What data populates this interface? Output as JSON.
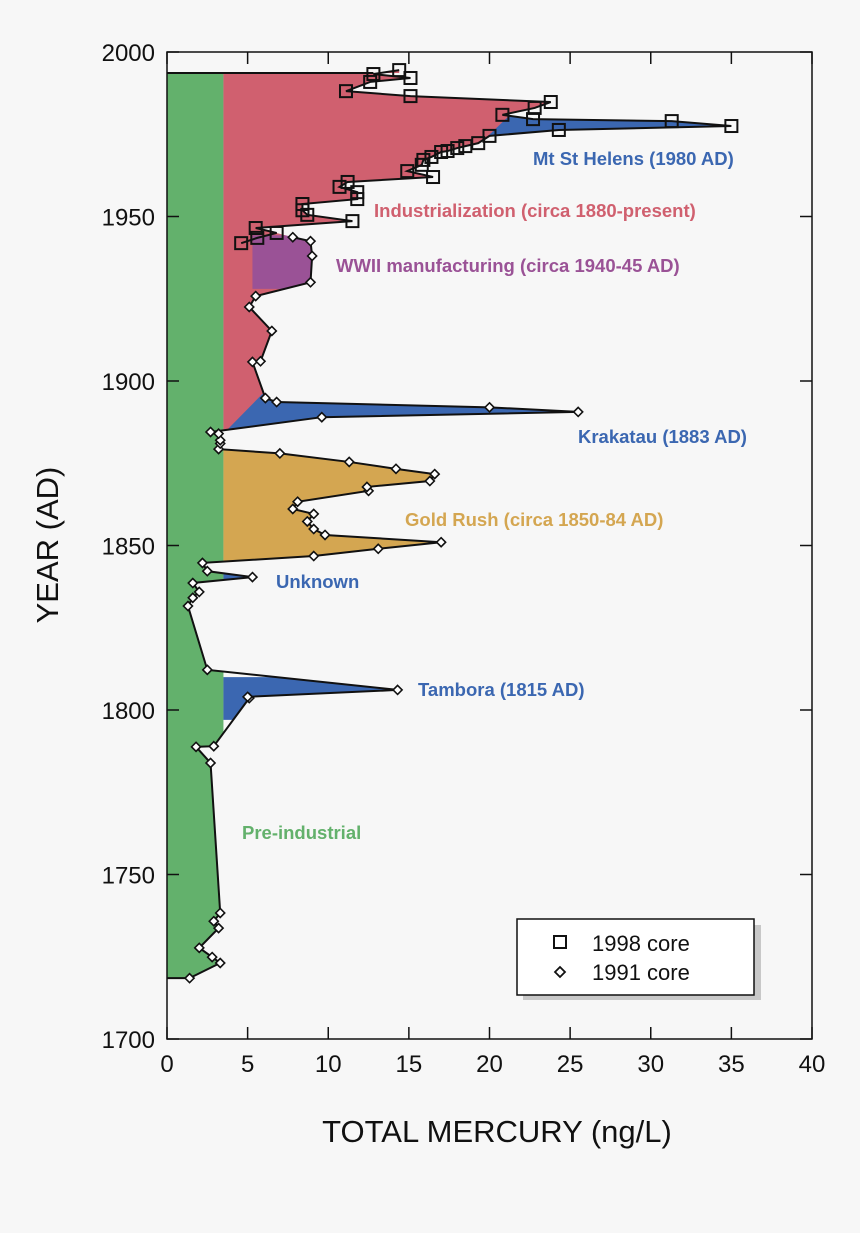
{
  "chart_data": {
    "type": "area",
    "title": "",
    "xlabel": "TOTAL MERCURY (ng/L)",
    "ylabel": "YEAR (AD)",
    "xlim": [
      0,
      40
    ],
    "ylim": [
      1700,
      2000
    ],
    "xticks": [
      "0",
      "5",
      "10",
      "15",
      "20",
      "25",
      "30",
      "35",
      "40"
    ],
    "yticks": [
      "1700",
      "1750",
      "1800",
      "1850",
      "1900",
      "1950",
      "2000"
    ],
    "legend_position": "bottom-right",
    "series": [
      {
        "name": "1998 core",
        "marker": "square",
        "points": [
          [
            4.6,
            1941.9
          ],
          [
            5.6,
            1943.5
          ],
          [
            6.8,
            1945
          ],
          [
            5.5,
            1946.5
          ],
          [
            11.5,
            1948.6
          ],
          [
            8.7,
            1950.5
          ],
          [
            8.4,
            1951.9
          ],
          [
            8.4,
            1953.8
          ],
          [
            11.8,
            1955.3
          ],
          [
            11.8,
            1957.4
          ],
          [
            10.7,
            1959
          ],
          [
            11.2,
            1960.5
          ],
          [
            16.5,
            1962
          ],
          [
            14.9,
            1963.8
          ],
          [
            15.8,
            1965.7
          ],
          [
            15.9,
            1967.2
          ],
          [
            16.4,
            1968.1
          ],
          [
            17,
            1969.6
          ],
          [
            17.4,
            1969.9
          ],
          [
            18,
            1970.8
          ],
          [
            18.5,
            1971.4
          ],
          [
            19.3,
            1972.3
          ],
          [
            20,
            1974.5
          ],
          [
            24.3,
            1976.3
          ],
          [
            35,
            1977.5
          ],
          [
            31.3,
            1979
          ],
          [
            22.7,
            1979.6
          ],
          [
            20.8,
            1980.9
          ],
          [
            22.8,
            1983
          ],
          [
            23.8,
            1984.8
          ],
          [
            15.1,
            1986.6
          ],
          [
            11.1,
            1988.1
          ],
          [
            12.6,
            1990.9
          ],
          [
            15.1,
            1992.1
          ],
          [
            12.8,
            1993.3
          ],
          [
            14.4,
            1994.5
          ]
        ]
      },
      {
        "name": "1991 core",
        "marker": "diamond",
        "points": [
          [
            1.4,
            1718.5
          ],
          [
            3.3,
            1723.1
          ],
          [
            2.8,
            1724.9
          ],
          [
            2,
            1727.7
          ],
          [
            3.2,
            1733.7
          ],
          [
            2.9,
            1735.8
          ],
          [
            3.3,
            1738.3
          ],
          [
            2.7,
            1783.9
          ],
          [
            1.8,
            1788.8
          ],
          [
            2.9,
            1789
          ],
          [
            5.1,
            1803.6
          ],
          [
            5.0,
            1804
          ],
          [
            14.3,
            1806.1
          ],
          [
            2.5,
            1812.2
          ],
          [
            1.3,
            1831.6
          ],
          [
            1.6,
            1834.1
          ],
          [
            2,
            1835.9
          ],
          [
            1.6,
            1838.6
          ],
          [
            5.3,
            1840.4
          ],
          [
            2.5,
            1842.2
          ],
          [
            2.2,
            1844.7
          ],
          [
            9.1,
            1846.8
          ],
          [
            13.1,
            1849
          ],
          [
            17,
            1851
          ],
          [
            9.8,
            1853.2
          ],
          [
            9.1,
            1855
          ],
          [
            8.7,
            1857.3
          ],
          [
            9.1,
            1859.6
          ],
          [
            7.8,
            1861.1
          ],
          [
            8.1,
            1863.3
          ],
          [
            12.5,
            1866.6
          ],
          [
            12.4,
            1867.8
          ],
          [
            16.3,
            1869.6
          ],
          [
            16.6,
            1871.7
          ],
          [
            14.2,
            1873.3
          ],
          [
            11.3,
            1875.4
          ],
          [
            7,
            1878
          ],
          [
            3.2,
            1879.3
          ],
          [
            3.3,
            1881
          ],
          [
            3.3,
            1882
          ],
          [
            3.2,
            1884
          ],
          [
            2.7,
            1884.5
          ],
          [
            9.6,
            1889
          ],
          [
            25.5,
            1890.6
          ],
          [
            20,
            1892
          ],
          [
            6.8,
            1893.6
          ],
          [
            6.1,
            1894.8
          ],
          [
            5.3,
            1905.8
          ],
          [
            5.8,
            1906
          ],
          [
            6.5,
            1915.2
          ],
          [
            5.1,
            1922.5
          ],
          [
            5.5,
            1925.8
          ],
          [
            8.9,
            1930
          ],
          [
            9.0,
            1938
          ],
          [
            8.9,
            1942.5
          ],
          [
            7.8,
            1943.7
          ]
        ]
      }
    ],
    "baseline_ng_per_L": 3.5,
    "top_year": 1993.6,
    "regions": [
      {
        "name": "Pre-industrial",
        "label": "Pre-industrial",
        "color": "#63b16c",
        "polygon": [
          [
            0,
            1700
          ],
          [
            3.5,
            1700
          ],
          [
            3.5,
            2000
          ],
          [
            0,
            2000
          ]
        ]
      },
      {
        "name": "Industrialization",
        "label": "Industrialization (circa 1880-present)",
        "color": "#d0606f",
        "polygon": [
          [
            3.5,
            1884
          ],
          [
            40,
            1884
          ],
          [
            40,
            2000
          ],
          [
            3.5,
            2000
          ]
        ]
      },
      {
        "name": "Krakatau",
        "label": "Krakatau (1883 AD)",
        "color": "#3b67b1",
        "polygon": [
          [
            3.5,
            1884
          ],
          [
            40,
            1884
          ],
          [
            40,
            1896
          ],
          [
            5.9,
            1896
          ]
        ]
      },
      {
        "name": "Mt St Helens",
        "label": "Mt St Helens (1980 AD)",
        "color": "#3b67b1",
        "polygon": [
          [
            19.7,
            1973.5
          ],
          [
            40,
            1973.5
          ],
          [
            40,
            1981
          ],
          [
            21.3,
            1981
          ]
        ]
      },
      {
        "name": "WWII",
        "label": "WWII manufacturing (circa 1940-45 AD)",
        "color": "#9a5296",
        "polygon": [
          [
            5.3,
            1928
          ],
          [
            40,
            1928
          ],
          [
            40,
            1944.3
          ],
          [
            5.3,
            1944.3
          ]
        ]
      },
      {
        "name": "Gold Rush",
        "label": "Gold Rush (circa 1850-84 AD)",
        "color": "#d4a651",
        "polygon": [
          [
            3.5,
            1845
          ],
          [
            40,
            1845
          ],
          [
            40,
            1879.2
          ],
          [
            3.5,
            1879.2
          ]
        ]
      },
      {
        "name": "Unknown",
        "label": "Unknown",
        "color": "#3b67b1",
        "polygon": [
          [
            3.5,
            1839
          ],
          [
            40,
            1839
          ],
          [
            40,
            1841.5
          ],
          [
            3.5,
            1841.5
          ]
        ]
      },
      {
        "name": "Tambora",
        "label": "Tambora (1815 AD)",
        "color": "#3b67b1",
        "polygon": [
          [
            3.5,
            1797
          ],
          [
            40,
            1797
          ],
          [
            40,
            1810
          ],
          [
            3.5,
            1810
          ]
        ]
      }
    ]
  }
}
